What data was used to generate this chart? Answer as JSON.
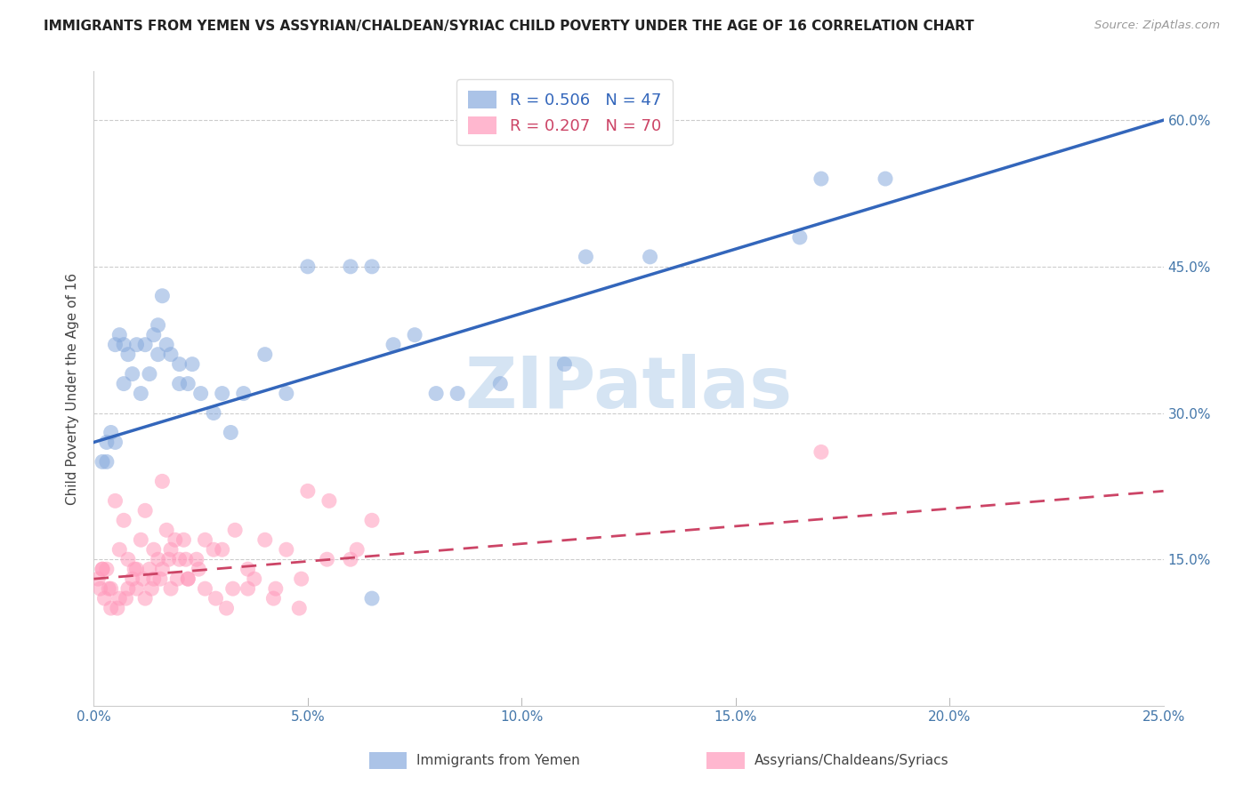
{
  "title": "IMMIGRANTS FROM YEMEN VS ASSYRIAN/CHALDEAN/SYRIAC CHILD POVERTY UNDER THE AGE OF 16 CORRELATION CHART",
  "source": "Source: ZipAtlas.com",
  "ylabel_label": "Child Poverty Under the Age of 16",
  "xlim": [
    0,
    25
  ],
  "ylim": [
    0,
    65
  ],
  "xlabel_vals": [
    0.0,
    5.0,
    10.0,
    15.0,
    20.0,
    25.0
  ],
  "ylabel_vals": [
    15.0,
    30.0,
    45.0,
    60.0
  ],
  "blue_R": 0.506,
  "blue_N": 47,
  "pink_R": 0.207,
  "pink_N": 70,
  "blue_label": "Immigrants from Yemen",
  "pink_label": "Assyrians/Chaldeans/Syriacs",
  "blue_color": "#88AADD",
  "pink_color": "#FF99BB",
  "blue_line_color": "#3366BB",
  "pink_line_color": "#CC4466",
  "watermark_text": "ZIPatlas",
  "blue_intercept": 27.0,
  "blue_slope": 1.32,
  "pink_intercept": 13.0,
  "pink_slope": 0.36,
  "blue_scatter_x": [
    0.2,
    0.3,
    0.4,
    0.5,
    0.6,
    0.7,
    0.8,
    1.0,
    1.2,
    1.4,
    1.5,
    1.6,
    1.8,
    2.0,
    2.2,
    2.5,
    3.0,
    3.5,
    4.0,
    5.0,
    6.5,
    7.5,
    8.0,
    9.5,
    11.0,
    13.0,
    16.5,
    18.5,
    0.3,
    0.5,
    0.7,
    0.9,
    1.1,
    1.3,
    1.5,
    1.7,
    2.0,
    2.3,
    2.8,
    3.2,
    4.5,
    6.0,
    7.0,
    8.5,
    11.5,
    17.0,
    6.5
  ],
  "blue_scatter_y": [
    25,
    27,
    28,
    37,
    38,
    37,
    36,
    37,
    37,
    38,
    39,
    42,
    36,
    35,
    33,
    32,
    32,
    32,
    36,
    45,
    45,
    38,
    32,
    33,
    35,
    46,
    48,
    54,
    25,
    27,
    33,
    34,
    32,
    34,
    36,
    37,
    33,
    35,
    30,
    28,
    32,
    45,
    37,
    32,
    46,
    54,
    11
  ],
  "pink_scatter_x": [
    0.1,
    0.2,
    0.3,
    0.4,
    0.5,
    0.6,
    0.7,
    0.8,
    0.9,
    1.0,
    1.1,
    1.2,
    1.3,
    1.4,
    1.5,
    1.6,
    1.7,
    1.8,
    1.9,
    2.0,
    2.1,
    2.2,
    2.4,
    2.6,
    2.8,
    3.0,
    3.3,
    3.6,
    4.0,
    4.5,
    5.0,
    5.5,
    6.0,
    6.5,
    0.15,
    0.25,
    0.35,
    0.55,
    0.75,
    0.95,
    1.15,
    1.35,
    1.55,
    1.75,
    1.95,
    2.15,
    2.45,
    2.85,
    3.25,
    3.75,
    4.25,
    4.85,
    5.45,
    6.15,
    0.2,
    0.4,
    0.6,
    0.8,
    1.0,
    1.2,
    1.4,
    1.6,
    1.8,
    2.2,
    2.6,
    3.1,
    3.6,
    4.2,
    4.8,
    17.0
  ],
  "pink_scatter_y": [
    13,
    14,
    14,
    12,
    21,
    16,
    19,
    15,
    13,
    14,
    17,
    20,
    14,
    16,
    15,
    23,
    18,
    16,
    17,
    15,
    17,
    13,
    15,
    17,
    16,
    16,
    18,
    14,
    17,
    16,
    22,
    21,
    15,
    19,
    12,
    11,
    12,
    10,
    11,
    14,
    13,
    12,
    13,
    15,
    13,
    15,
    14,
    11,
    12,
    13,
    12,
    13,
    15,
    16,
    14,
    10,
    11,
    12,
    12,
    11,
    13,
    14,
    12,
    13,
    12,
    10,
    12,
    11,
    10,
    26
  ]
}
